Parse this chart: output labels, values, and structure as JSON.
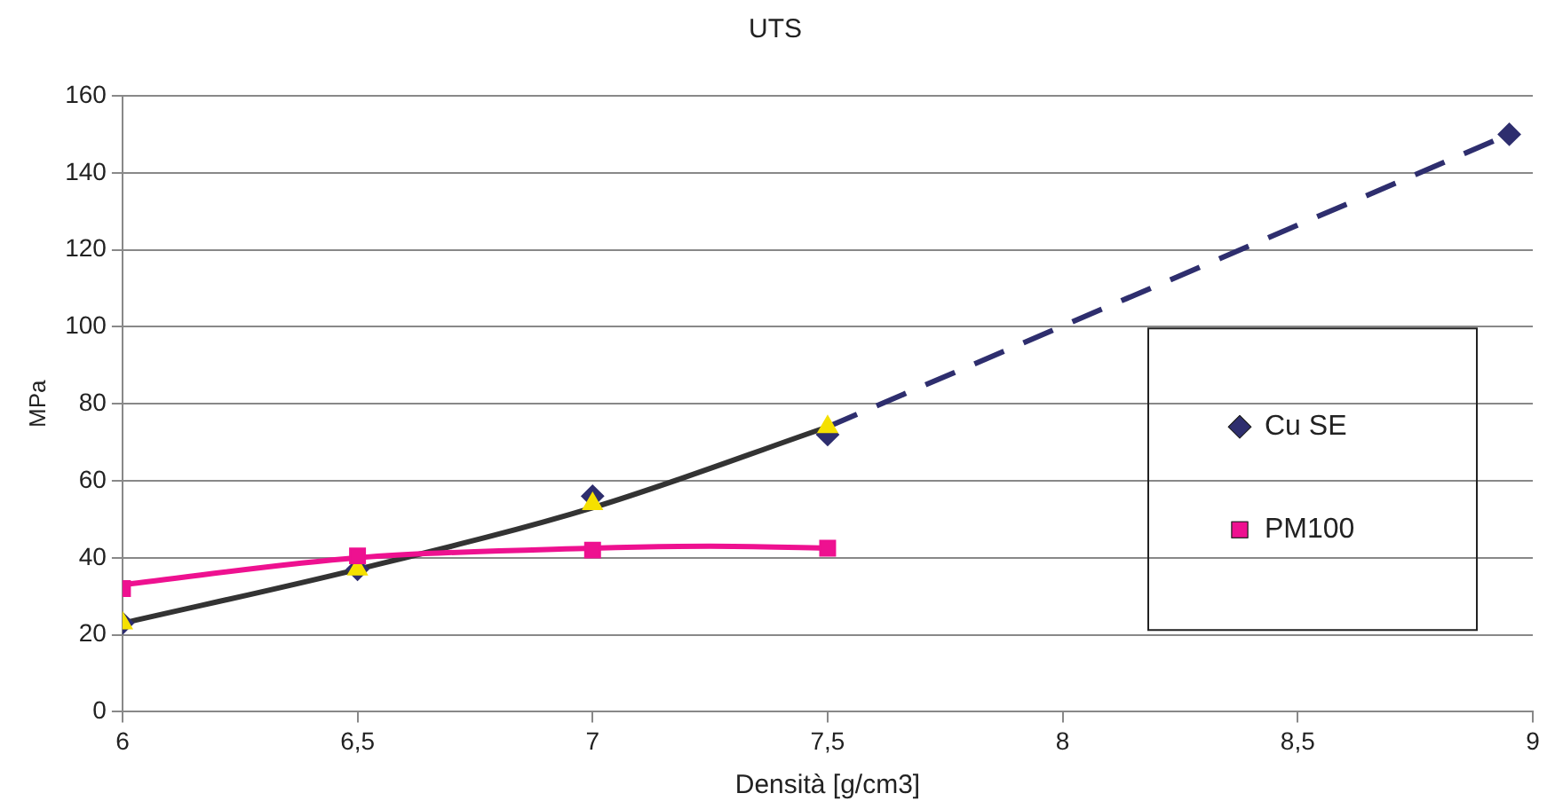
{
  "chart_data": {
    "type": "scatter",
    "title": "UTS",
    "xlabel": "Densità [g/cm3]",
    "ylabel": "MPa",
    "xlim": [
      6,
      9
    ],
    "xticks": [
      6,
      {
        "value": 6.5,
        "label": "6,5"
      },
      7,
      {
        "value": 7.5,
        "label": "7,5"
      },
      8,
      {
        "value": 8.5,
        "label": "8,5"
      },
      9
    ],
    "ylim": [
      0,
      160
    ],
    "yticks": [
      0,
      20,
      40,
      60,
      80,
      100,
      120,
      140,
      160
    ],
    "grid": "y",
    "legend": "right",
    "series": [
      {
        "type": "line",
        "color": "#333333",
        "marker": "none",
        "x": [
          6,
          6.5,
          7,
          7.5
        ],
        "values": [
          23,
          37,
          53,
          74
        ]
      },
      {
        "type": "line",
        "color": "#2e2e6e",
        "marker": "none",
        "line_style": "dashed",
        "x": [
          7.5,
          8.95
        ],
        "values": [
          74,
          150
        ]
      },
      {
        "type": "line",
        "color": "#ee1190",
        "marker": "none",
        "x": [
          6,
          6.5,
          7,
          7.25,
          7.5
        ],
        "values": [
          33,
          40,
          42.5,
          43,
          42.5
        ]
      },
      {
        "name": "Cu SE",
        "color": "#2e2e6e",
        "marker": "diamond",
        "x": [
          6,
          6.5,
          7,
          7.5,
          8.95
        ],
        "values": [
          23,
          37,
          56,
          72,
          150
        ]
      },
      {
        "color": "#f5e000",
        "marker": "triangle",
        "x": [
          6,
          6.5,
          7,
          7.5
        ],
        "values": [
          23,
          37,
          54,
          74
        ]
      },
      {
        "name": "PM100",
        "color": "#ee1190",
        "marker": "square",
        "x": [
          6,
          6.5,
          7,
          7.5
        ],
        "values": [
          32,
          40.5,
          42,
          42.5
        ]
      }
    ]
  }
}
